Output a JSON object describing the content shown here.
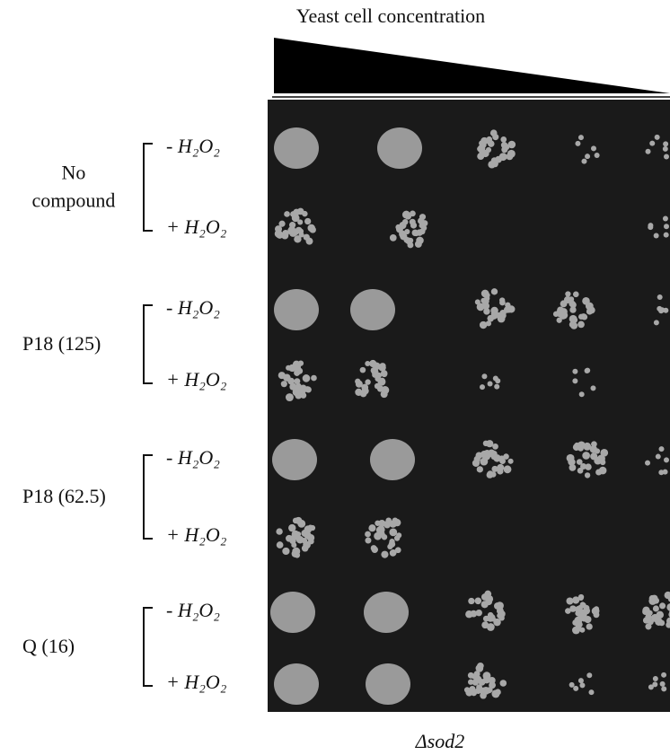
{
  "header": {
    "title": "Yeast cell concentration"
  },
  "groups": [
    {
      "label": [
        "No",
        "compound"
      ],
      "rows": [
        "- H₂O₂",
        "+ H₂O₂"
      ]
    },
    {
      "label": [
        "P18 (125)"
      ],
      "rows": [
        "- H₂O₂",
        "+ H₂O₂"
      ]
    },
    {
      "label": [
        "P18 (62.5)"
      ],
      "rows": [
        "- H₂O₂",
        "+ H₂O₂"
      ]
    },
    {
      "label": [
        "Q (16)"
      ],
      "rows": [
        "- H₂O₂",
        "+ H₂O₂"
      ]
    }
  ],
  "footer": {
    "strain": "Δsod2"
  }
}
